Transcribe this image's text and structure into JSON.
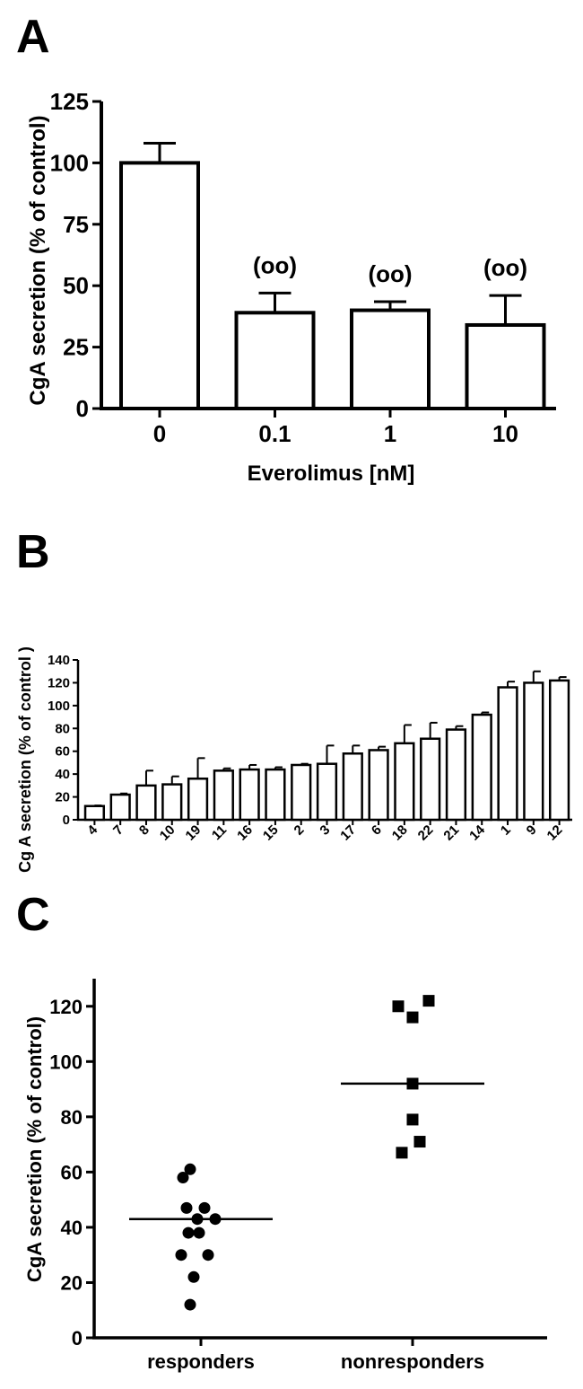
{
  "chart_data": [
    {
      "panel": "A",
      "type": "bar",
      "xlabel": "Everolimus [nM]",
      "ylabel": "CgA secretion (% of control)",
      "ylim": [
        0,
        125
      ],
      "yticks": [
        "0",
        "25",
        "50",
        "75",
        "100",
        "125"
      ],
      "categories": [
        "0",
        "0.1",
        "1",
        "10"
      ],
      "values": [
        100,
        39,
        40,
        34
      ],
      "errors": [
        8,
        8,
        3.5,
        12
      ],
      "annotations": [
        "",
        "(oo)",
        "(oo)",
        "(oo)"
      ]
    },
    {
      "panel": "B",
      "type": "bar",
      "xlabel": "",
      "ylabel": "Cg A secretion (% of control )",
      "ylim": [
        0,
        140
      ],
      "yticks": [
        "0",
        "20",
        "40",
        "60",
        "80",
        "100",
        "120",
        "140"
      ],
      "categories": [
        "4",
        "7",
        "8",
        "10",
        "19",
        "11",
        "16",
        "15",
        "2",
        "3",
        "17",
        "6",
        "18",
        "22",
        "21",
        "14",
        "1",
        "9",
        "12"
      ],
      "values": [
        12,
        22,
        30,
        31,
        36,
        43,
        44,
        44,
        48,
        49,
        58,
        61,
        67,
        71,
        79,
        92,
        116,
        120,
        122
      ],
      "errors": [
        0.5,
        1,
        13,
        7,
        18,
        2,
        4,
        2,
        1,
        16,
        7,
        3,
        16,
        14,
        3,
        2,
        5,
        10,
        3
      ]
    },
    {
      "panel": "C",
      "type": "scatter",
      "xlabel": "",
      "ylabel": "CgA secretion (% of control)",
      "ylim": [
        0,
        130
      ],
      "yticks": [
        "0",
        "20",
        "40",
        "60",
        "80",
        "100",
        "120"
      ],
      "categories": [
        "responders",
        "nonresponders"
      ],
      "series": [
        {
          "marker": "circle",
          "points": [
            {
              "x": -0.12,
              "y": 61
            },
            {
              "x": -0.2,
              "y": 58
            },
            {
              "x": -0.16,
              "y": 47
            },
            {
              "x": 0.04,
              "y": 47
            },
            {
              "x": -0.04,
              "y": 43
            },
            {
              "x": 0.16,
              "y": 43
            },
            {
              "x": -0.14,
              "y": 38
            },
            {
              "x": -0.02,
              "y": 38
            },
            {
              "x": -0.22,
              "y": 30
            },
            {
              "x": 0.08,
              "y": 30
            },
            {
              "x": -0.08,
              "y": 22
            },
            {
              "x": -0.12,
              "y": 12
            }
          ],
          "median": 43
        },
        {
          "marker": "square",
          "points": [
            {
              "x": -0.16,
              "y": 120
            },
            {
              "x": 0.0,
              "y": 116
            },
            {
              "x": 0.18,
              "y": 122
            },
            {
              "x": 0.0,
              "y": 92
            },
            {
              "x": 0.0,
              "y": 79
            },
            {
              "x": -0.12,
              "y": 67
            },
            {
              "x": 0.08,
              "y": 71
            }
          ],
          "median": 92
        }
      ]
    }
  ]
}
